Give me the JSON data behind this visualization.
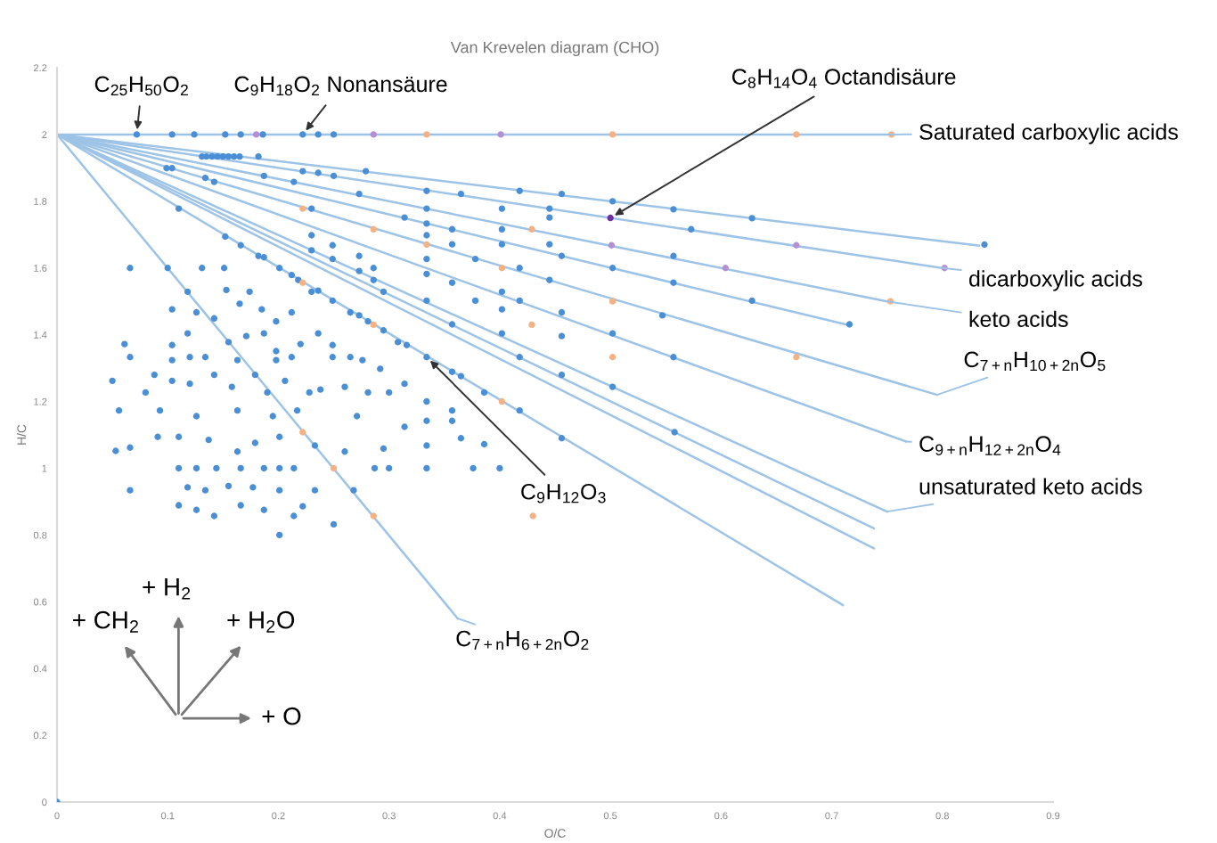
{
  "chart_data": {
    "type": "scatter",
    "title": "Van Krevelen diagram (CHO)",
    "xlabel": "O/C",
    "ylabel": "H/C",
    "xlim": [
      0,
      0.9
    ],
    "ylim": [
      0,
      2.2
    ],
    "xticks": [
      0,
      0.1,
      0.2,
      0.3,
      0.4,
      0.5,
      0.6,
      0.7,
      0.8,
      0.9
    ],
    "yticks": [
      0,
      0.2,
      0.4,
      0.6,
      0.8,
      1,
      1.2,
      1.4,
      1.6,
      1.8,
      2,
      2.2
    ],
    "grid": false,
    "legend": false,
    "series": [
      {
        "type": "line",
        "color": "#9dc3e6",
        "x": [
          0,
          0.75
        ],
        "values": [
          2,
          2
        ]
      },
      {
        "type": "line",
        "color": "#9dc3e6",
        "x": [
          0,
          0.833
        ],
        "values": [
          2,
          1.667
        ]
      },
      {
        "type": "line",
        "color": "#9dc3e6",
        "x": [
          0,
          0.8
        ],
        "values": [
          2,
          1.6
        ]
      },
      {
        "type": "line",
        "color": "#9dc3e6",
        "x": [
          0,
          0.75
        ],
        "values": [
          2,
          1.5
        ]
      },
      {
        "type": "line",
        "color": "#9dc3e6",
        "x": [
          0,
          0.714
        ],
        "values": [
          2,
          1.43
        ]
      },
      {
        "type": "line",
        "color": "#9dc3e6",
        "x": [
          0,
          0.795
        ],
        "values": [
          2,
          1.22
        ]
      },
      {
        "type": "line",
        "color": "#9dc3e6",
        "x": [
          0,
          0.767
        ],
        "values": [
          2,
          1.08
        ]
      },
      {
        "type": "line",
        "color": "#9dc3e6",
        "x": [
          0,
          0.75
        ],
        "values": [
          2,
          0.87
        ]
      },
      {
        "type": "line",
        "color": "#9dc3e6",
        "x": [
          0,
          0.738
        ],
        "values": [
          2,
          0.82
        ]
      },
      {
        "type": "line",
        "color": "#9dc3e6",
        "x": [
          0,
          0.738
        ],
        "values": [
          2,
          0.76
        ]
      },
      {
        "type": "line",
        "color": "#9dc3e6",
        "x": [
          0,
          0.71
        ],
        "values": [
          2,
          0.59
        ]
      },
      {
        "type": "line",
        "color": "#9dc3e6",
        "x": [
          0,
          0.362
        ],
        "values": [
          2,
          0.55
        ]
      },
      {
        "marker": "circle",
        "color": "#4a8fd6",
        "x": [
          0.072,
          0.104,
          0.124,
          0.152,
          0.166,
          0.186,
          0.222,
          0.236,
          0.25,
          0.131,
          0.135,
          0.14,
          0.145,
          0.15,
          0.155,
          0.16,
          0.165,
          0.182,
          0.099,
          0.104,
          0.187,
          0.214,
          0.222,
          0.236,
          0.25,
          0.279,
          0.134,
          0.142,
          0.11,
          0.273,
          0.334,
          0.365,
          0.418,
          0.456,
          0.502,
          0.557,
          0.628,
          0.838,
          0.23,
          0.334,
          0.402,
          0.445,
          0.573,
          0.152,
          0.166,
          0.182,
          0.187,
          0.201,
          0.212,
          0.218,
          0.23,
          0.236,
          0.249,
          0.265,
          0.273,
          0.281,
          0.295,
          0.308,
          0.316,
          0.334,
          0.357,
          0.365,
          0.386,
          0.418,
          0.456,
          0.23,
          0.23,
          0.249,
          0.249,
          0.273,
          0.273,
          0.286,
          0.286,
          0.295,
          0.314,
          0.334,
          0.334,
          0.334,
          0.334,
          0.334,
          0.357,
          0.357,
          0.357,
          0.357,
          0.378,
          0.378,
          0.402,
          0.402,
          0.402,
          0.402,
          0.402,
          0.418,
          0.418,
          0.418,
          0.445,
          0.445,
          0.445,
          0.456,
          0.456,
          0.456,
          0.456,
          0.502,
          0.502,
          0.502,
          0.557,
          0.557,
          0.547,
          0.628,
          0.716,
          0.557,
          0.558,
          0.066,
          0.1,
          0.131,
          0.151,
          0.118,
          0.104,
          0.153,
          0.174,
          0.165,
          0.185,
          0.126,
          0.142,
          0.198,
          0.212,
          0.061,
          0.104,
          0.118,
          0.155,
          0.171,
          0.187,
          0.198,
          0.22,
          0.236,
          0.249,
          0.066,
          0.088,
          0.08,
          0.104,
          0.12,
          0.134,
          0.142,
          0.163,
          0.179,
          0.198,
          0.212,
          0.228,
          0.249,
          0.265,
          0.276,
          0.292,
          0.3,
          0.314,
          0.05,
          0.104,
          0.12,
          0.158,
          0.19,
          0.206,
          0.238,
          0.26,
          0.281,
          0.334,
          0.357,
          0.056,
          0.093,
          0.126,
          0.163,
          0.195,
          0.217,
          0.271,
          0.053,
          0.066,
          0.091,
          0.11,
          0.126,
          0.144,
          0.166,
          0.187,
          0.201,
          0.214,
          0.287,
          0.3,
          0.334,
          0.376,
          0.4,
          0.066,
          0.118,
          0.134,
          0.155,
          0.177,
          0.201,
          0.233,
          0.268,
          0.11,
          0.126,
          0.142,
          0.166,
          0.187,
          0.214,
          0.222,
          0.25,
          0.201,
          0.11,
          0.137,
          0.163,
          0.179,
          0.201,
          0.233,
          0.26,
          0.295,
          0.314,
          0.334,
          0.365,
          0.386,
          0.334,
          0.357,
          0
        ],
        "values": [
          2,
          2,
          2,
          2,
          2,
          2,
          2,
          2,
          2,
          1.934,
          1.934,
          1.934,
          1.934,
          1.934,
          1.934,
          1.934,
          1.934,
          1.934,
          1.899,
          1.899,
          1.876,
          1.858,
          1.89,
          1.885,
          1.876,
          1.89,
          1.87,
          1.858,
          1.778,
          1.822,
          1.831,
          1.822,
          1.831,
          1.822,
          1.8,
          1.776,
          1.749,
          1.67,
          1.778,
          1.778,
          1.778,
          1.778,
          1.716,
          1.694,
          1.668,
          1.636,
          1.632,
          1.6,
          1.579,
          1.564,
          1.529,
          1.532,
          1.502,
          1.467,
          1.458,
          1.44,
          1.413,
          1.378,
          1.369,
          1.333,
          1.289,
          1.276,
          1.227,
          1.173,
          1.09,
          1.698,
          1.653,
          1.668,
          1.627,
          1.636,
          1.591,
          1.6,
          1.564,
          1.529,
          1.751,
          1.733,
          1.698,
          1.627,
          1.582,
          1.502,
          1.716,
          1.671,
          1.556,
          1.431,
          1.627,
          1.502,
          1.716,
          1.671,
          1.529,
          1.476,
          1.404,
          1.6,
          1.502,
          1.333,
          1.751,
          1.671,
          1.564,
          1.636,
          1.467,
          1.396,
          1.28,
          1.6,
          1.404,
          1.244,
          1.636,
          1.556,
          1.458,
          1.502,
          1.431,
          1.333,
          1.108,
          1.6,
          1.6,
          1.6,
          1.6,
          1.529,
          1.476,
          1.534,
          1.529,
          1.493,
          1.476,
          1.467,
          1.449,
          1.44,
          1.467,
          1.372,
          1.369,
          1.404,
          1.378,
          1.396,
          1.404,
          1.351,
          1.372,
          1.404,
          1.369,
          1.333,
          1.28,
          1.227,
          1.324,
          1.333,
          1.333,
          1.28,
          1.324,
          1.28,
          1.324,
          1.333,
          1.227,
          1.333,
          1.333,
          1.324,
          1.298,
          1.227,
          1.253,
          1.262,
          1.262,
          1.253,
          1.244,
          1.227,
          1.262,
          1.236,
          1.244,
          1.227,
          1.2,
          1.173,
          1.173,
          1.173,
          1.156,
          1.173,
          1.156,
          1.173,
          1.156,
          1.052,
          1.062,
          1.094,
          1,
          1,
          1,
          1,
          1,
          1,
          1,
          1,
          1,
          1,
          1,
          1,
          0.934,
          0.943,
          0.934,
          0.947,
          0.943,
          0.934,
          0.934,
          0.934,
          0.889,
          0.875,
          0.857,
          0.889,
          0.875,
          0.857,
          0.886,
          0.832,
          0.8,
          1.094,
          1.085,
          1.05,
          1.076,
          1.094,
          1.068,
          1.05,
          1.059,
          1.124,
          1.068,
          1.09,
          1.072,
          1.142,
          1.142,
          0
        ]
      },
      {
        "marker": "circle",
        "color": "#f4b183",
        "x": [
          0.334,
          0.502,
          0.668,
          0.754,
          0.222,
          0.286,
          0.334,
          0.429,
          0.402,
          0.502,
          0.429,
          0.502,
          0.286,
          0.222,
          0.402,
          0.668,
          0.753,
          0.222,
          0.25,
          0.286,
          0.43
        ],
        "values": [
          2,
          2,
          2,
          2,
          1.778,
          1.716,
          1.67,
          1.716,
          1.6,
          1.5,
          1.43,
          1.333,
          1.43,
          1.556,
          1.2,
          1.333,
          1.5,
          1.108,
          1,
          0.857,
          0.857
        ]
      },
      {
        "marker": "circle",
        "color": "#b48fd6",
        "x": [
          0.18,
          0.286,
          0.401,
          0.501,
          0.604,
          0.668,
          0.802
        ],
        "values": [
          2,
          2,
          2,
          1.668,
          1.6,
          1.668,
          1.6
        ]
      },
      {
        "marker": "circle",
        "color": "#7030a0",
        "x": [
          0.5
        ],
        "values": [
          1.75
        ]
      }
    ],
    "annotations": [
      {
        "text": "C$_{25}$H$_{50}$O$_{2}$",
        "x": 0.072,
        "y": 2
      },
      {
        "text": "C$_{9}$H$_{18}$O$_{2}$ Nonansäure",
        "x": 0.222,
        "y": 2
      },
      {
        "text": "C$_{8}$H$_{14}$O$_{4}$ Octandisäure",
        "x": 0.5,
        "y": 1.75
      },
      {
        "text": "Saturated carboxylic acids",
        "x": 0.75,
        "y": 2
      },
      {
        "text": "dicarboxylic acids",
        "x": 0.8,
        "y": 1.6
      },
      {
        "text": "keto acids",
        "x": 0.75,
        "y": 1.5
      },
      {
        "text": "C$_{7+n}$H$_{10+2n}$O$_{5}$",
        "x": 0.795,
        "y": 1.22
      },
      {
        "text": "C$_{9+n}$H$_{12+2n}$O$_{4}$",
        "x": 0.767,
        "y": 1.08
      },
      {
        "text": "unsaturated keto acids",
        "x": 0.75,
        "y": 0.87
      },
      {
        "text": "C$_{9}$H$_{12}$O$_{3}$",
        "x": 0.334,
        "y": 1.333
      },
      {
        "text": "C$_{7+n}$H$_{6+2n}$O$_{2}$",
        "x": 0.362,
        "y": 0.55
      },
      "+ CH$_{2}$",
      "+ H$_{2}$",
      "+ H$_{2}$O",
      "+ O"
    ]
  }
}
